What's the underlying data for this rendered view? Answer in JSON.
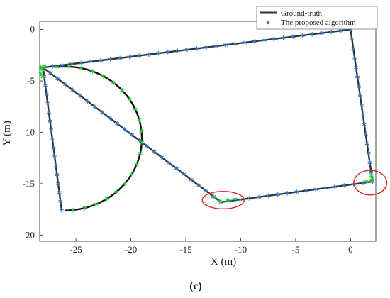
{
  "chart_data": {
    "type": "line",
    "xlabel": "X (m)",
    "ylabel": "Y (m)",
    "caption": "(c)",
    "xlim": [
      -28.3,
      2.3
    ],
    "ylim": [
      -20.6,
      0.8
    ],
    "xticks": [
      -25,
      -20,
      -15,
      -10,
      -5,
      0
    ],
    "yticks": [
      0,
      -5,
      -10,
      -15,
      -20
    ],
    "legend_position": "top-right",
    "grid": false,
    "series": [
      {
        "name": "Ground-truth",
        "style": "line",
        "color": "#333333",
        "polyline": [
          [
            0,
            0
          ],
          [
            2.0,
            -14.8
          ],
          [
            -11.8,
            -16.8
          ],
          [
            -28.0,
            -3.7
          ],
          [
            0,
            0
          ]
        ],
        "polyline2": [
          [
            -28.0,
            -3.7
          ],
          [
            -26.3,
            -17.6
          ]
        ],
        "arc": {
          "center": [
            -26.0,
            -10.6
          ],
          "radius": 7.0,
          "from_deg": 96,
          "to_deg": -90
        }
      },
      {
        "name": "The proposed algorithm",
        "style": "asterisk-markers",
        "color": "#2f78c8",
        "highlight_color": "#22cc33"
      }
    ],
    "annotations": [
      {
        "type": "ellipse",
        "color": "#dd2222",
        "center": [
          -11.6,
          -16.6
        ],
        "radii": [
          1.9,
          0.85
        ]
      },
      {
        "type": "ellipse",
        "color": "#dd2222",
        "center": [
          1.8,
          -14.9
        ],
        "radii": [
          1.5,
          1.2
        ]
      }
    ]
  }
}
